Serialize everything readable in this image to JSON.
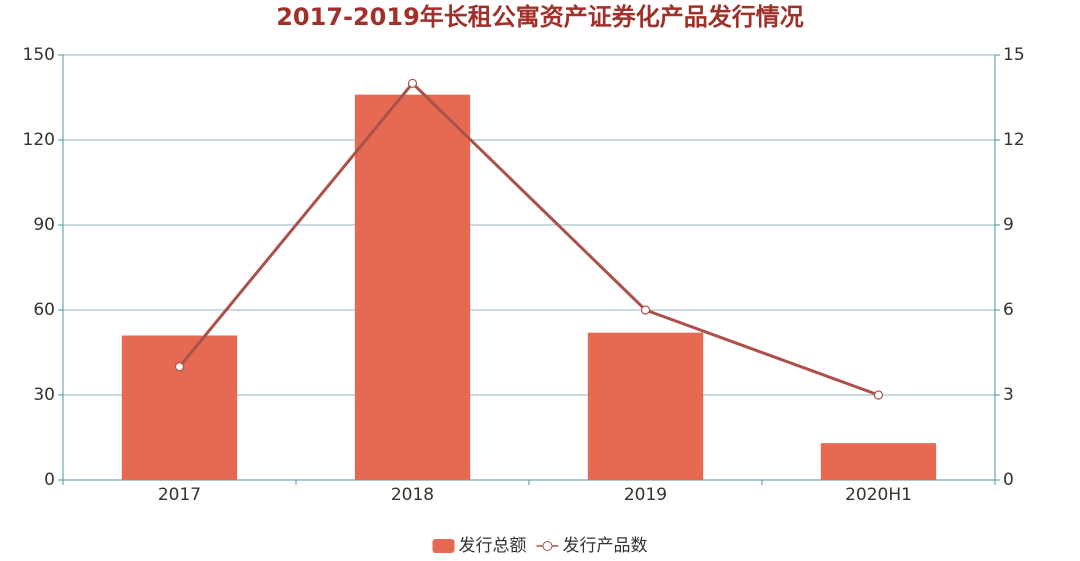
{
  "chart_data": {
    "type": "bar",
    "title": "2017-2019年长租公寓资产证券化产品发行情况",
    "categories": [
      "2017",
      "2018",
      "2019",
      "2020H1"
    ],
    "series": [
      {
        "name": "发行总额",
        "type": "bar",
        "color": "#e56a51",
        "values": [
          51,
          136,
          52,
          13
        ]
      },
      {
        "name": "发行产品数",
        "type": "line",
        "axis": "y2",
        "color": "#ab514b",
        "values": [
          4,
          14,
          6,
          3
        ]
      }
    ],
    "ylim": [
      0,
      150
    ],
    "yticks": [
      0,
      30,
      60,
      90,
      120,
      150
    ],
    "y2lim": [
      0,
      15
    ],
    "y2ticks": [
      0,
      3,
      6,
      9,
      12,
      15
    ],
    "grid": true,
    "legend": "bottom"
  }
}
